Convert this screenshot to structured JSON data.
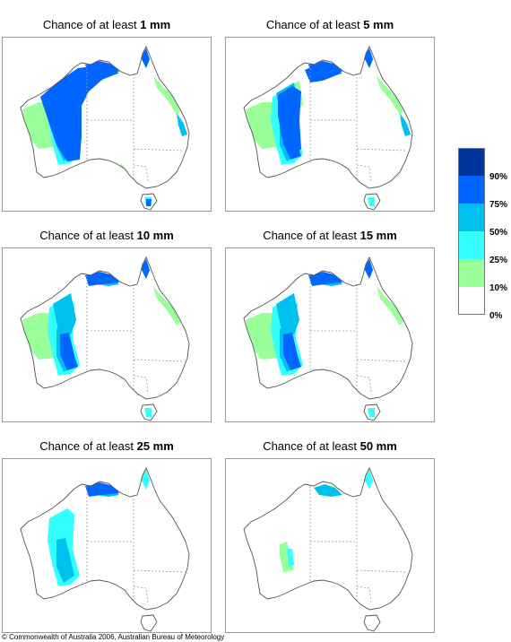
{
  "panels": [
    {
      "prefix": "Chance of at least ",
      "amount": "1 mm"
    },
    {
      "prefix": "Chance of at least ",
      "amount": "5 mm"
    },
    {
      "prefix": "Chance of at least ",
      "amount": "10 mm"
    },
    {
      "prefix": "Chance of at least ",
      "amount": "15 mm"
    },
    {
      "prefix": "Chance of at least ",
      "amount": "25 mm"
    },
    {
      "prefix": "Chance of at least ",
      "amount": "50 mm"
    }
  ],
  "legend": {
    "labels": [
      "90%",
      "75%",
      "50%",
      "25%",
      "10%",
      "0%"
    ],
    "colors": [
      "#00359c",
      "#0066ff",
      "#00c0ee",
      "#33ffff",
      "#99ff99",
      "#ffffff"
    ]
  },
  "copyright": "© Commonwealth of Australia 2006, Australian Bureau of Meteorology"
}
